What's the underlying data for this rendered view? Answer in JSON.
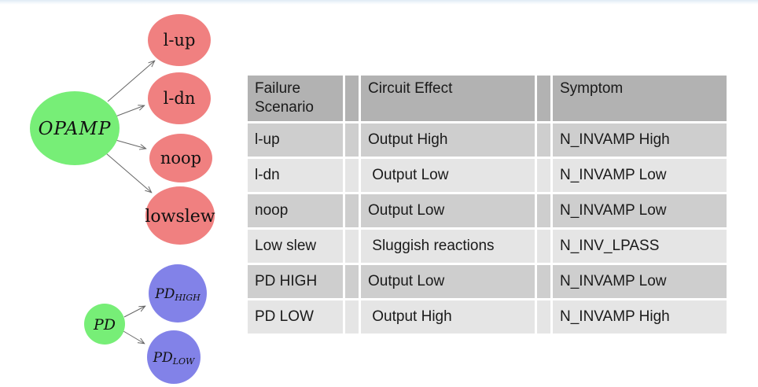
{
  "diagram": {
    "arrow_color": "#666666",
    "opamp_tree": {
      "root": {
        "label": "OPAMP",
        "fill": "#77ee77"
      },
      "children": [
        {
          "label": "l-up",
          "fill": "#f08080"
        },
        {
          "label": "l-dn",
          "fill": "#f08080"
        },
        {
          "label": "noop",
          "fill": "#f08080"
        },
        {
          "label": "lowslew",
          "fill": "#f08080"
        }
      ]
    },
    "pd_tree": {
      "root": {
        "label": "PD",
        "fill": "#77ee77"
      },
      "children": [
        {
          "base": "PD",
          "sub": "HIGH",
          "fill": "#8282e8"
        },
        {
          "base": "PD",
          "sub": "LOW",
          "fill": "#8282e8"
        }
      ]
    }
  },
  "table": {
    "headers": {
      "scenario": "Failure Scenario",
      "effect": "Circuit Effect",
      "symptom": "Symptom"
    },
    "rows": [
      {
        "scenario": "l-up",
        "effect": "Output High",
        "symptom": "N_INVAMP High"
      },
      {
        "scenario": "l-dn",
        "effect": " Output Low",
        "symptom": "N_INVAMP Low"
      },
      {
        "scenario": "noop",
        "effect": "Output Low",
        "symptom": "N_INVAMP Low"
      },
      {
        "scenario": "Low slew",
        "effect": " Sluggish reactions",
        "symptom": "N_INV_LPASS"
      },
      {
        "scenario": "PD HIGH",
        "effect": "Output Low",
        "symptom": "N_INVAMP Low"
      },
      {
        "scenario": "PD LOW",
        "effect": " Output High",
        "symptom": "N_INVAMP High"
      }
    ],
    "colors": {
      "header_bg": "#b2b2b2",
      "row_dark_bg": "#cecece",
      "row_light_bg": "#e5e5e5",
      "grid_line": "#ffffff"
    }
  }
}
